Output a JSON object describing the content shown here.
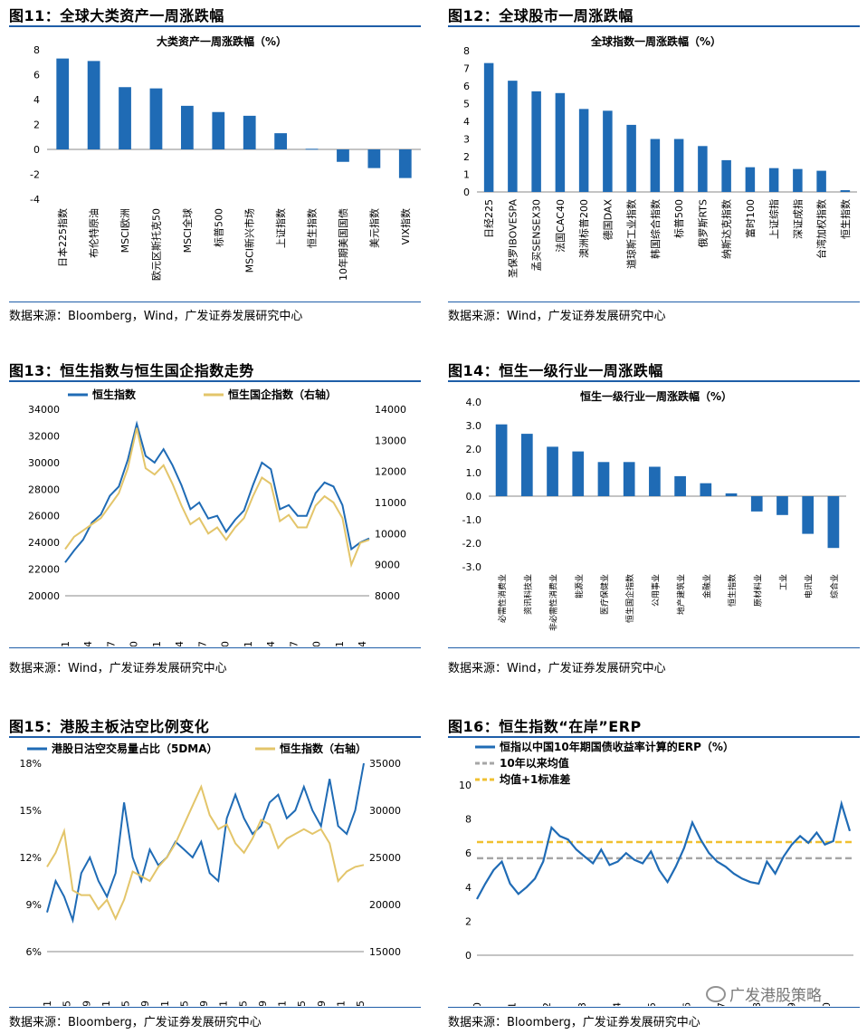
{
  "colors": {
    "blue": "#1f6bb5",
    "gold": "#e3c56a",
    "gray": "#a6a6a6",
    "gold_dash": "#f0c030",
    "rule": "#1f5ea8"
  },
  "panels": [
    {
      "title": "图11：全球大类资产一周涨跌幅",
      "source": "数据来源：Bloomberg，Wind，广发证券发展研究中心"
    },
    {
      "title": "图12：全球股市一周涨跌幅",
      "source": "数据来源：Wind，广发证券发展研究中心"
    },
    {
      "title": "图13：恒生指数与恒生国企指数走势",
      "source": "数据来源：Wind，广发证券发展研究中心"
    },
    {
      "title": "图14：恒生一级行业一周涨跌幅",
      "source": "数据来源：Wind，广发证券发展研究中心"
    },
    {
      "title": "图15：港股主板沽空比例变化",
      "source": "数据来源：Bloomberg，广发证券发展研究中心"
    },
    {
      "title": "图16：恒生指数“在岸”ERP",
      "source": "数据来源：Bloomberg，广发证券发展研究中心"
    }
  ],
  "watermark": "广发港股策略",
  "chart_data": [
    {
      "type": "bar",
      "title": "大类资产一周涨跌幅（%）",
      "categories": [
        "日本225指数",
        "布伦特原油",
        "MSCI欧洲",
        "欧元区斯托克50",
        "MSCI全球",
        "标普500",
        "MSCI新兴市场",
        "上证指数",
        "恒生指数",
        "10年期美国国债",
        "美元指数",
        "VIX指数"
      ],
      "values": [
        7.3,
        7.1,
        5.0,
        4.9,
        3.5,
        3.0,
        2.7,
        1.3,
        0.05,
        -1.0,
        -1.5,
        -2.3
      ],
      "ylim": [
        -4,
        8
      ],
      "yticks": [
        -4,
        -2,
        0,
        2,
        4,
        6,
        8
      ]
    },
    {
      "type": "bar",
      "title": "全球指数一周涨跌幅（%）",
      "categories": [
        "日经225",
        "圣保罗IBOVESPA",
        "孟买SENSEX30",
        "法国CAC40",
        "澳洲标普200",
        "德国DAX",
        "道琼斯工业指数",
        "韩国综合指数",
        "标普500",
        "俄罗斯RTS",
        "纳斯达克指数",
        "富时100",
        "上证综指",
        "深证成指",
        "台湾加权指数",
        "恒生指数"
      ],
      "values": [
        7.3,
        6.3,
        5.7,
        5.6,
        4.7,
        4.6,
        3.8,
        3.0,
        3.0,
        2.6,
        1.8,
        1.4,
        1.35,
        1.3,
        1.2,
        0.1
      ],
      "ylim": [
        0,
        8
      ],
      "yticks": [
        0,
        1,
        2,
        3,
        4,
        5,
        6,
        7,
        8
      ]
    },
    {
      "type": "line",
      "legend": [
        "恒生指数",
        "恒生国企指数（右轴）"
      ],
      "x_labels": [
        "2017/01",
        "2017/04",
        "2017/07",
        "2017/10",
        "2018/01",
        "2018/04",
        "2018/07",
        "2018/10",
        "2019/01",
        "2019/04",
        "2019/07",
        "2019/10",
        "2020/01",
        "2020/04"
      ],
      "ylim_left": [
        20000,
        34000
      ],
      "yticks_left": [
        20000,
        22000,
        24000,
        26000,
        28000,
        30000,
        32000,
        34000
      ],
      "ylim_right": [
        8000,
        14000
      ],
      "yticks_right": [
        8000,
        9000,
        10000,
        11000,
        12000,
        13000,
        14000
      ],
      "series": [
        {
          "name": "恒生指数",
          "axis": "left",
          "values": [
            22500,
            23400,
            24200,
            25500,
            26100,
            27500,
            28200,
            30200,
            32900,
            30500,
            30000,
            31000,
            29800,
            28300,
            26500,
            27000,
            25800,
            26000,
            24800,
            25700,
            26400,
            28300,
            30000,
            29500,
            26500,
            26800,
            26000,
            26000,
            27700,
            28500,
            28200,
            26800,
            23500,
            24000,
            24300
          ]
        },
        {
          "name": "恒生国企指数",
          "axis": "right",
          "values": [
            9500,
            9900,
            10100,
            10300,
            10500,
            10900,
            11300,
            12100,
            13400,
            12100,
            11900,
            12200,
            11600,
            10900,
            10300,
            10500,
            10000,
            10200,
            9800,
            10200,
            10500,
            11200,
            11800,
            11600,
            10400,
            10600,
            10200,
            10200,
            10900,
            11200,
            11000,
            10500,
            9000,
            9700,
            9800
          ]
        }
      ]
    },
    {
      "type": "bar",
      "title": "恒生一级行业一周涨跌幅（%）",
      "categories": [
        "必需性消费业",
        "资讯科技业",
        "非必需性消费业",
        "能源业",
        "医疗保健业",
        "恒生国企指数",
        "公用事业",
        "地产建筑业",
        "金融业",
        "恒生指数",
        "原材料业",
        "工业",
        "电讯业",
        "综合业"
      ],
      "values": [
        3.05,
        2.65,
        2.1,
        1.9,
        1.45,
        1.45,
        1.25,
        0.85,
        0.55,
        0.12,
        -0.65,
        -0.8,
        -1.6,
        -2.2
      ],
      "ylim": [
        -3,
        4
      ],
      "yticks": [
        "4.0",
        "3.0",
        "2.0",
        "1.0",
        "0.0",
        "-1.0",
        "-2.0",
        "-3.0"
      ]
    },
    {
      "type": "line",
      "legend": [
        "港股日沽空交易量占比（5DMA）",
        "恒生指数（右轴）"
      ],
      "x_labels": [
        "2015/01",
        "2015/05",
        "2015/09",
        "2016/01",
        "2016/05",
        "2016/09",
        "2017/01",
        "2017/05",
        "2017/09",
        "2018/01",
        "2018/05",
        "2018/09",
        "2019/01",
        "2019/05",
        "2019/09",
        "2020/01",
        "2020/05"
      ],
      "ylim_left": [
        6,
        18
      ],
      "yticks_left": [
        "6%",
        "9%",
        "12%",
        "15%",
        "18%"
      ],
      "ylim_right": [
        15000,
        35000
      ],
      "yticks_right": [
        15000,
        20000,
        25000,
        30000,
        35000
      ],
      "series": [
        {
          "name": "港股日沽空交易量占比（5DMA）",
          "axis": "left",
          "values": [
            8.5,
            10.5,
            9.5,
            8.0,
            11.0,
            12.0,
            10.5,
            9.5,
            11.0,
            15.5,
            12.0,
            10.5,
            12.5,
            11.5,
            12.0,
            13.0,
            12.5,
            12.0,
            13.0,
            11.0,
            10.5,
            14.5,
            16.0,
            14.5,
            13.5,
            14.0,
            15.5,
            16.0,
            14.5,
            15.0,
            16.5,
            15.0,
            14.0,
            17.0,
            14.0,
            13.5,
            15.0,
            18.0
          ]
        },
        {
          "name": "恒生指数（右轴）",
          "axis": "right",
          "values": [
            24000,
            25500,
            27800,
            21500,
            21000,
            21000,
            19500,
            20500,
            18500,
            20500,
            23500,
            23000,
            22500,
            24000,
            25000,
            26500,
            28500,
            30500,
            32500,
            29500,
            28000,
            28500,
            26500,
            25500,
            27000,
            29000,
            28500,
            26000,
            27000,
            27500,
            28000,
            27500,
            28000,
            26500,
            22500,
            23500,
            24000,
            24200
          ]
        }
      ]
    },
    {
      "type": "line",
      "legend": [
        "恒指以中国10年期国债收益率计算的ERP（%）",
        "10年以来均值",
        "均值+1标准差"
      ],
      "x_labels": [
        "2010",
        "2011",
        "2012",
        "2013",
        "2014",
        "2015",
        "2016",
        "2017",
        "2018",
        "2019",
        "2020"
      ],
      "ylim": [
        0,
        10
      ],
      "yticks": [
        0,
        2,
        4,
        6,
        8,
        10
      ],
      "reference_lines": {
        "mean": 5.7,
        "mean_plus_1sd": 6.65
      },
      "series": [
        {
          "name": "ERP",
          "values": [
            3.3,
            4.2,
            5.0,
            5.5,
            4.2,
            3.6,
            4.0,
            4.5,
            5.5,
            7.5,
            7.0,
            6.8,
            6.2,
            5.8,
            5.4,
            6.2,
            5.3,
            5.5,
            6.0,
            5.6,
            5.4,
            6.1,
            5.0,
            4.3,
            5.2,
            6.3,
            7.8,
            6.8,
            6.0,
            5.5,
            5.2,
            4.8,
            4.5,
            4.3,
            4.2,
            5.5,
            4.8,
            5.8,
            6.5,
            7.0,
            6.6,
            7.2,
            6.5,
            6.7,
            8.9,
            7.3
          ]
        }
      ]
    }
  ]
}
